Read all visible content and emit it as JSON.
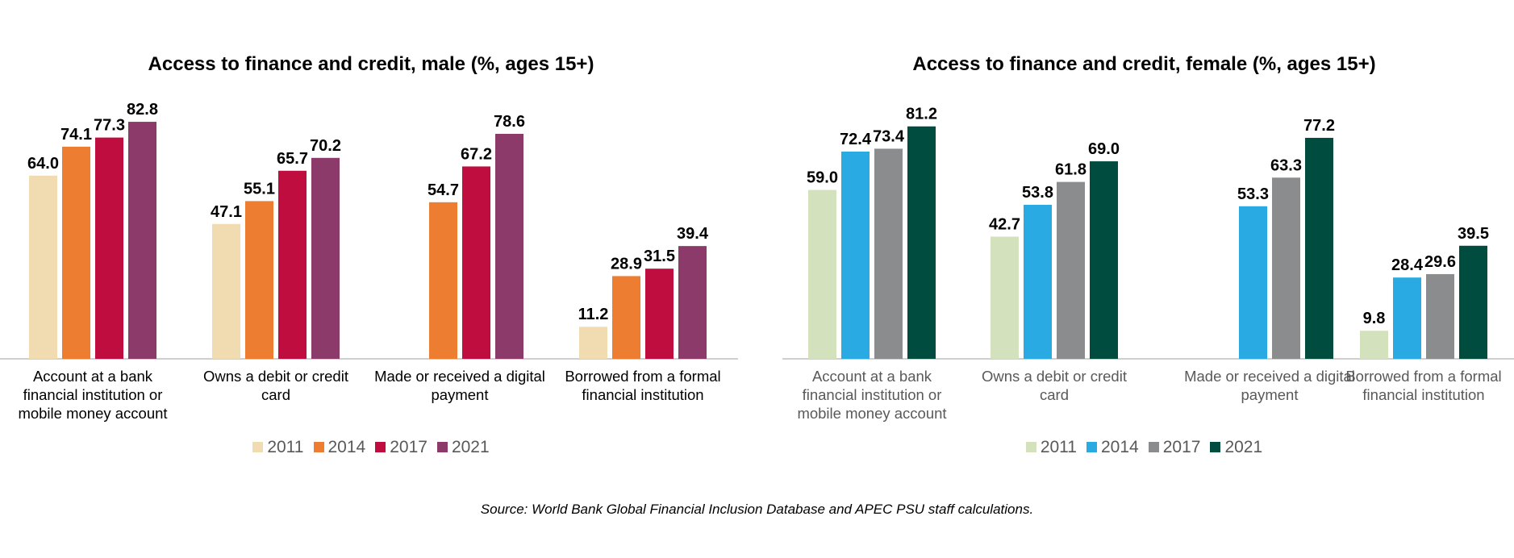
{
  "source_note": "Source: World Bank Global Financial Inclusion Database and APEC PSU staff calculations.",
  "chart_data": [
    {
      "type": "bar",
      "title": "Access to finance and credit, male (%, ages 15+)",
      "categories": [
        [
          "Account at a bank",
          "financial institution or",
          "mobile money account"
        ],
        [
          "Owns a debit or credit",
          "card"
        ],
        [
          "Made or received a digital",
          "payment"
        ],
        [
          "Borrowed from a formal",
          "financial institution"
        ]
      ],
      "series": [
        {
          "name": "2011",
          "color": "#F0DCB0",
          "values": [
            64.0,
            47.1,
            null,
            11.2
          ]
        },
        {
          "name": "2014",
          "color": "#ED7D31",
          "values": [
            74.1,
            55.1,
            54.7,
            28.9
          ]
        },
        {
          "name": "2017",
          "color": "#C00D3F",
          "values": [
            77.3,
            65.7,
            67.2,
            31.5
          ]
        },
        {
          "name": "2021",
          "color": "#8B3A6A",
          "values": [
            82.8,
            70.2,
            78.6,
            39.4
          ]
        }
      ],
      "ylim": [
        0,
        90
      ],
      "legend": "bottom",
      "grid": false
    },
    {
      "type": "bar",
      "title": "Access to finance and credit, female (%, ages 15+)",
      "categories": [
        [
          "Account at a bank",
          "financial institution or",
          "mobile money account"
        ],
        [
          "Owns a debit or credit",
          "card"
        ],
        [
          "Made or received a digital",
          "payment"
        ],
        [
          "Borrowed from a formal",
          "financial institution"
        ]
      ],
      "series": [
        {
          "name": "2011",
          "color": "#D3E1BC",
          "values": [
            59.0,
            42.7,
            null,
            9.8
          ]
        },
        {
          "name": "2014",
          "color": "#2AAAE3",
          "values": [
            72.4,
            53.8,
            53.3,
            28.4
          ]
        },
        {
          "name": "2017",
          "color": "#8A8C8E",
          "values": [
            73.4,
            61.8,
            63.3,
            29.6
          ]
        },
        {
          "name": "2021",
          "color": "#004D40",
          "values": [
            81.2,
            69.0,
            77.2,
            39.5
          ]
        }
      ],
      "ylim": [
        0,
        90
      ],
      "legend": "bottom",
      "grid": false
    }
  ]
}
